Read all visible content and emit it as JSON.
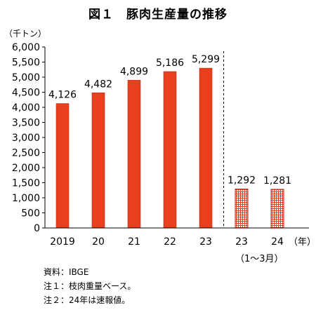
{
  "title": "図１　豚肉生産量の推移",
  "unit_label": "（千トン）",
  "year_unit": "（年）",
  "sub_period_label": "（1～3月）",
  "notes": [
    "資料：IBGE",
    "注１：枝肉重量ベース。",
    "注２：24年は速報値。"
  ],
  "colors": {
    "annual_bar": "#e8401c",
    "bar_edge": "#c0301a",
    "quarter_hatch": "#e8401c",
    "divider": "#000000"
  },
  "chart_data": {
    "type": "bar",
    "title": "図１　豚肉生産量の推移",
    "xlabel": "（年）",
    "ylabel": "（千トン）",
    "ylim": [
      0,
      6000
    ],
    "yticks": [
      0,
      500,
      1000,
      1500,
      2000,
      2500,
      3000,
      3500,
      4000,
      4500,
      5000,
      5500,
      6000
    ],
    "ytick_labels": [
      "0",
      "500",
      "1,000",
      "1,500",
      "2,000",
      "2,500",
      "3,000",
      "3,500",
      "4,000",
      "4,500",
      "5,000",
      "5,500",
      "6,000"
    ],
    "categories": [
      "2019",
      "20",
      "21",
      "22",
      "23",
      "23",
      "24"
    ],
    "values": [
      4126,
      4482,
      4899,
      5186,
      5299,
      1292,
      1281
    ],
    "data_labels": [
      "4,126",
      "4,482",
      "4,899",
      "5,186",
      "5,299",
      "1,292",
      "1,281"
    ],
    "pattern": [
      "solid",
      "solid",
      "solid",
      "solid",
      "solid",
      "hatched",
      "hatched"
    ],
    "divider_after_index": 4,
    "grid": false
  }
}
